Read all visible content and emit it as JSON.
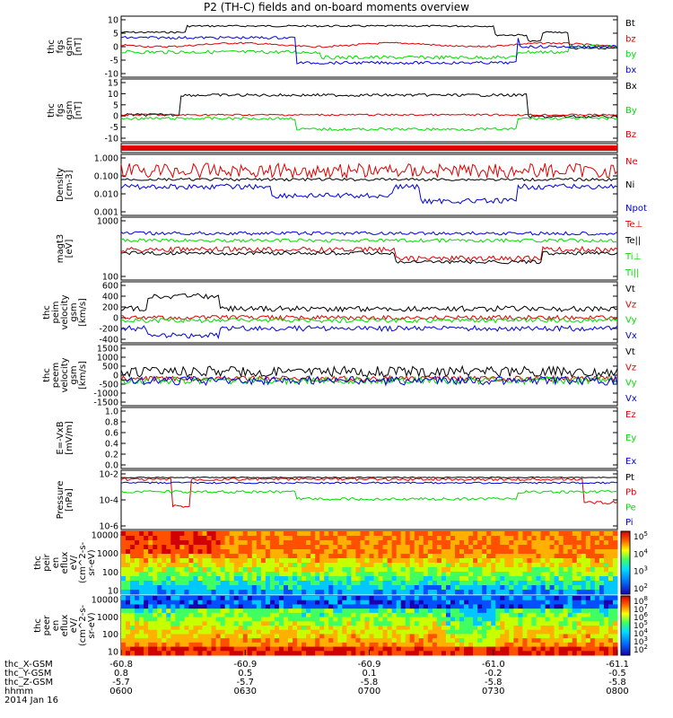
{
  "title": "P2 (TH-C) fields and on-board moments overview",
  "colors": {
    "black": "#000000",
    "red": "#e00000",
    "green": "#00dd00",
    "blue": "#0000e0",
    "axis": "#000000"
  },
  "panels": [
    {
      "ylabel": [
        "thc",
        "fgs",
        "gsm",
        "[nT]"
      ],
      "ticks": [
        "10",
        "5",
        "0",
        "-5",
        "-10"
      ],
      "legend": [
        {
          "text": "Bt",
          "color": "black"
        },
        {
          "text": "bz",
          "color": "red"
        },
        {
          "text": "by",
          "color": "green"
        },
        {
          "text": "bx",
          "color": "blue"
        }
      ]
    },
    {
      "ylabel": [
        "thc",
        "fgs",
        "gsm",
        "[nT]"
      ],
      "ticks": [
        "15",
        "10",
        "5",
        "0",
        "-5",
        "-10"
      ],
      "legend": [
        {
          "text": "Bx",
          "color": "black"
        },
        {
          "text": "By",
          "color": "green"
        },
        {
          "text": "Bz",
          "color": "red"
        }
      ]
    },
    {
      "ylabel": [],
      "ticks": [],
      "legend": []
    },
    {
      "ylabel": [
        "Density",
        "[cm-3]"
      ],
      "ticks": [
        "1.000",
        "0.100",
        "0.010",
        "0.001"
      ],
      "legend": [
        {
          "text": "Ne",
          "color": "red"
        },
        {
          "text": "Ni",
          "color": "black"
        },
        {
          "text": "Npot",
          "color": "blue"
        }
      ]
    },
    {
      "ylabel": [
        "magt3",
        "[eV]"
      ],
      "ticks": [
        "1000",
        "100"
      ],
      "legend": [
        {
          "text": "Te⊥",
          "color": "red"
        },
        {
          "text": "Te||",
          "color": "black"
        },
        {
          "text": "Ti⊥",
          "color": "green"
        },
        {
          "text": "Ti||",
          "color": "green"
        }
      ]
    },
    {
      "ylabel": [
        "thc",
        "peim",
        "velocity",
        "gsm",
        "[km/s]"
      ],
      "ticks": [
        "600",
        "400",
        "200",
        "0",
        "-200",
        "-400"
      ],
      "legend": [
        {
          "text": "Vt",
          "color": "black"
        },
        {
          "text": "Vz",
          "color": "red"
        },
        {
          "text": "Vy",
          "color": "green"
        },
        {
          "text": "Vx",
          "color": "blue"
        }
      ]
    },
    {
      "ylabel": [
        "thc",
        "peem",
        "velocity",
        "gsm",
        "[km/s]"
      ],
      "ticks": [
        "1500",
        "1000",
        "500",
        "0",
        "-500",
        "-1000",
        "-1500"
      ],
      "legend": [
        {
          "text": "Vt",
          "color": "black"
        },
        {
          "text": "Vz",
          "color": "red"
        },
        {
          "text": "Vy",
          "color": "green"
        },
        {
          "text": "Vx",
          "color": "blue"
        }
      ]
    },
    {
      "ylabel": [
        "E=-VxB",
        "[mV/m]"
      ],
      "ticks": [
        "1.0",
        "0.8",
        "0.6",
        "0.4",
        "0.2",
        "0.0"
      ],
      "legend": [
        {
          "text": "Ez",
          "color": "red"
        },
        {
          "text": "Ey",
          "color": "green"
        },
        {
          "text": "Ex",
          "color": "blue"
        }
      ]
    },
    {
      "ylabel": [
        "Pressure",
        "[nPa]"
      ],
      "ticks": [
        "10-2",
        "10-4",
        "10-6"
      ],
      "legend": [
        {
          "text": "Pt",
          "color": "black"
        },
        {
          "text": "Pb",
          "color": "red"
        },
        {
          "text": "Pe",
          "color": "green"
        },
        {
          "text": "Pi",
          "color": "blue"
        }
      ]
    },
    {
      "ylabel": [
        "thc",
        "peir",
        "en",
        "eflux",
        "eV/",
        "(cm^2-s-",
        "sr-eV)"
      ],
      "ticks": [
        "10000",
        "1000",
        "100",
        "10"
      ],
      "cbar": [
        "10^5",
        "10^4",
        "10^3",
        "10^2"
      ]
    },
    {
      "ylabel": [
        "thc",
        "peer",
        "en",
        "eflux",
        "eV/",
        "(cm^2-s-",
        "sr-eV)"
      ],
      "ticks": [
        "10000",
        "1000",
        "100",
        "10"
      ],
      "cbar": [
        "10^8",
        "10^7",
        "10^6",
        "10^5",
        "10^4",
        "10^3",
        "10^2"
      ]
    }
  ],
  "footer": {
    "rows": [
      "thc_X-GSM",
      "thc_Y-GSM",
      "thc_Z-GSM",
      "hhmm",
      "2014 Jan 16"
    ],
    "x_gsm": [
      "-60.8",
      "-60.9",
      "-60.9",
      "-61.0",
      "-61.1"
    ],
    "y_gsm": [
      "0.8",
      "0.5",
      "0.1",
      "-0.2",
      "-0.5"
    ],
    "z_gsm": [
      "-5.7",
      "-5.7",
      "-5.8",
      "-5.8",
      "-5.8"
    ],
    "hhmm": [
      "0600",
      "0630",
      "0700",
      "0730",
      "0800"
    ]
  },
  "chart_data": {
    "type": "line",
    "title": "P2 (TH-C) fields and on-board moments overview",
    "x": [
      "0600",
      "0630",
      "0700",
      "0730",
      "0800"
    ],
    "xlabel": "hhmm",
    "date": "2014 Jan 16",
    "series": [
      {
        "name": "Bt",
        "values": [
          5,
          7,
          7,
          6,
          2
        ]
      },
      {
        "name": "bz",
        "values": [
          1,
          0,
          1,
          0,
          0
        ]
      },
      {
        "name": "by",
        "values": [
          -1,
          -3,
          -5,
          -3,
          0
        ]
      },
      {
        "name": "bx",
        "values": [
          3,
          -4,
          -6,
          -5,
          1
        ]
      },
      {
        "name": "Ne",
        "values": [
          0.2,
          0.2,
          0.25,
          0.2,
          0.25
        ]
      },
      {
        "name": "Npot",
        "values": [
          0.03,
          0.01,
          0.004,
          0.005,
          0.01
        ]
      },
      {
        "name": "Vt (peim)",
        "values": [
          250,
          120,
          100,
          90,
          150
        ]
      }
    ]
  }
}
